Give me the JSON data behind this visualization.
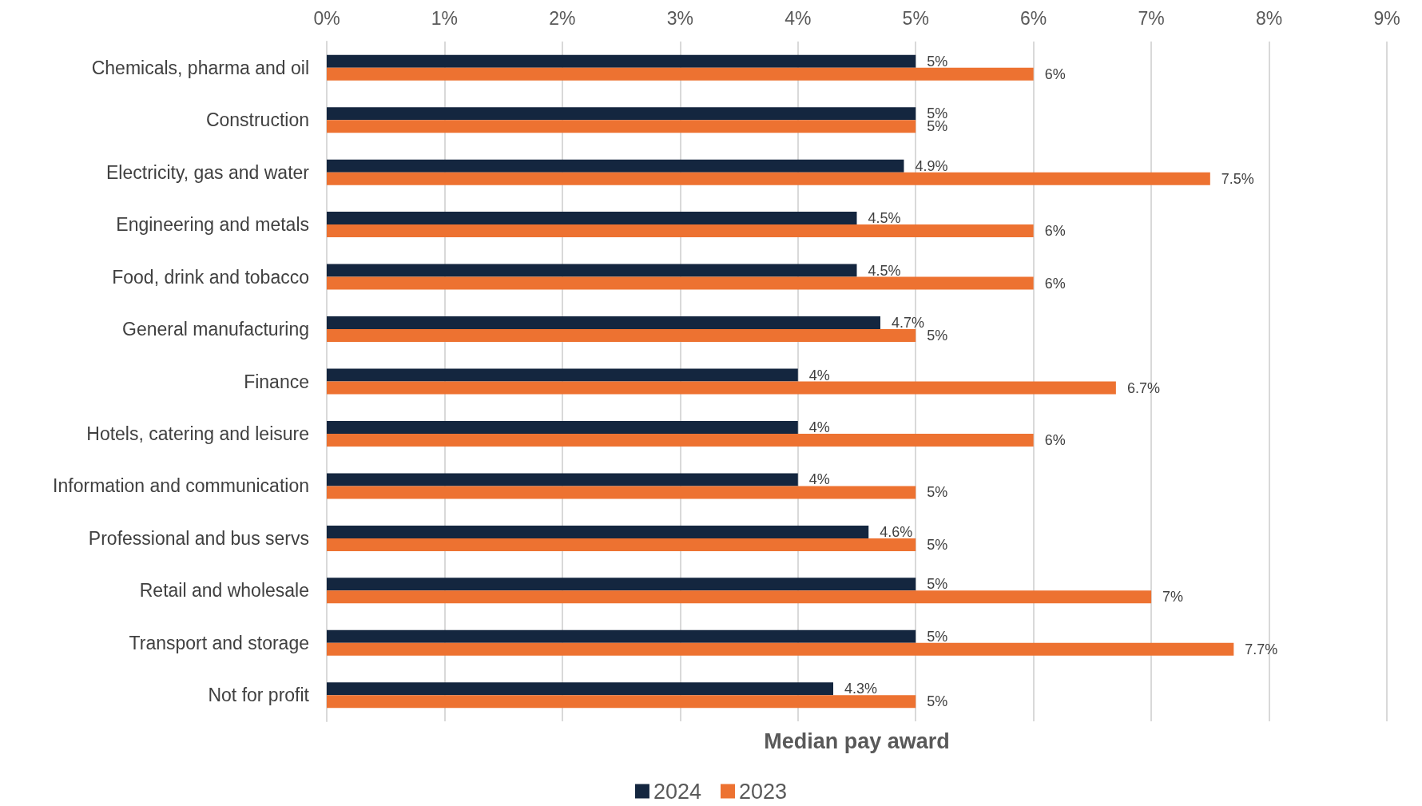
{
  "chart_data": {
    "type": "bar",
    "orientation": "horizontal",
    "xlabel": "Median pay award",
    "categories": [
      "Chemicals, pharma and oil",
      "Construction",
      "Electricity, gas and water",
      "Engineering and metals",
      "Food, drink and tobacco",
      "General manufacturing",
      "Finance",
      "Hotels, catering and leisure",
      "Information and communication",
      "Professional and bus servs",
      "Retail and wholesale",
      "Transport and storage",
      "Not for profit"
    ],
    "series": [
      {
        "name": "2024",
        "color": "#14263f",
        "values": [
          5,
          5,
          4.9,
          4.5,
          4.5,
          4.7,
          4,
          4,
          4,
          4.6,
          5,
          5,
          4.3
        ],
        "value_labels": [
          "5%",
          "5%",
          "4.9%",
          "4.5%",
          "4.5%",
          "4.7%",
          "4%",
          "4%",
          "4%",
          "4.6%",
          "5%",
          "5%",
          "4.3%"
        ]
      },
      {
        "name": "2023",
        "color": "#ed7231",
        "values": [
          6,
          5,
          7.5,
          6,
          6,
          5,
          6.7,
          6,
          5,
          5,
          7,
          7.7,
          5
        ],
        "value_labels": [
          "6%",
          "5%",
          "7.5%",
          "6%",
          "6%",
          "5%",
          "6.7%",
          "6%",
          "5%",
          "5%",
          "7%",
          "7.7%",
          "5%"
        ]
      }
    ],
    "xlim": [
      0,
      9
    ],
    "xticks": [
      {
        "value": 0,
        "label": "0%"
      },
      {
        "value": 1,
        "label": "1%"
      },
      {
        "value": 2,
        "label": "2%"
      },
      {
        "value": 3,
        "label": "3%"
      },
      {
        "value": 4,
        "label": "4%"
      },
      {
        "value": 5,
        "label": "5%"
      },
      {
        "value": 6,
        "label": "6%"
      },
      {
        "value": 7,
        "label": "7%"
      },
      {
        "value": 8,
        "label": "8%"
      },
      {
        "value": 9,
        "label": "9%"
      }
    ],
    "grid": "x",
    "legend": "bottom"
  }
}
